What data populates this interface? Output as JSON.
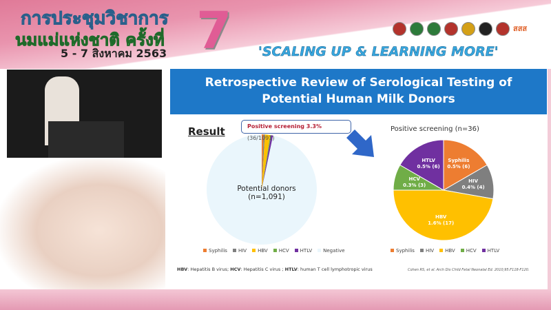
{
  "banner": {
    "title_line1": "การประชุมวิชาการ",
    "title_line2": "นมแม่แห่งชาติ ครั้งที่",
    "number": "7",
    "date": "5 - 7 สิงหาคม 2563",
    "slogan": "'SCALING UP & LEARNING MORE'",
    "logos_text": "สสส"
  },
  "slide": {
    "title_line1": "Retrospective Review of Serological Testing of",
    "title_line2": "Potential Human Milk Donors",
    "result_heading": "Result",
    "callout": {
      "bold": "Positive screening 3.3%",
      "detail": "(36/1091)"
    },
    "footnote": {
      "hbv": "HBV",
      "hbv_text": ": Hepatitis B virus; ",
      "hcv": "HCV",
      "hcv_text": ": Hepatitis C virus ; ",
      "htlv": "HTLV",
      "htlv_text": ": human T cell lymphotropic virus"
    },
    "citation": "Cohen RS, et al. Arch Dis Child Fetal Neonatal Ed. 2010;95:F118-F120."
  },
  "chart_data": [
    {
      "type": "pie",
      "center_label": "Potential donors",
      "center_sublabel": "(n=1,091)",
      "categories": [
        "Syphilis",
        "HIV",
        "HBV",
        "HCV",
        "HTLV",
        "Negative"
      ],
      "values": [
        6,
        4,
        17,
        3,
        6,
        1055
      ],
      "colors": [
        "#ed7d31",
        "#7f7f7f",
        "#ffc000",
        "#70ad47",
        "#7030a0",
        "#eaf6fc"
      ],
      "legend": "bottom"
    },
    {
      "type": "pie",
      "title": "Positive screening (n=36)",
      "categories": [
        "Syphilis",
        "HIV",
        "HBV",
        "HCV",
        "HTLV"
      ],
      "values": [
        6,
        4,
        17,
        3,
        6
      ],
      "labels": [
        "0.5% (6)",
        "0.4% (4)",
        "1.6% (17)",
        "0.3% (3)",
        "0.5% (6)"
      ],
      "colors": [
        "#ed7d31",
        "#7f7f7f",
        "#ffc000",
        "#70ad47",
        "#7030a0"
      ],
      "legend": "bottom"
    }
  ]
}
